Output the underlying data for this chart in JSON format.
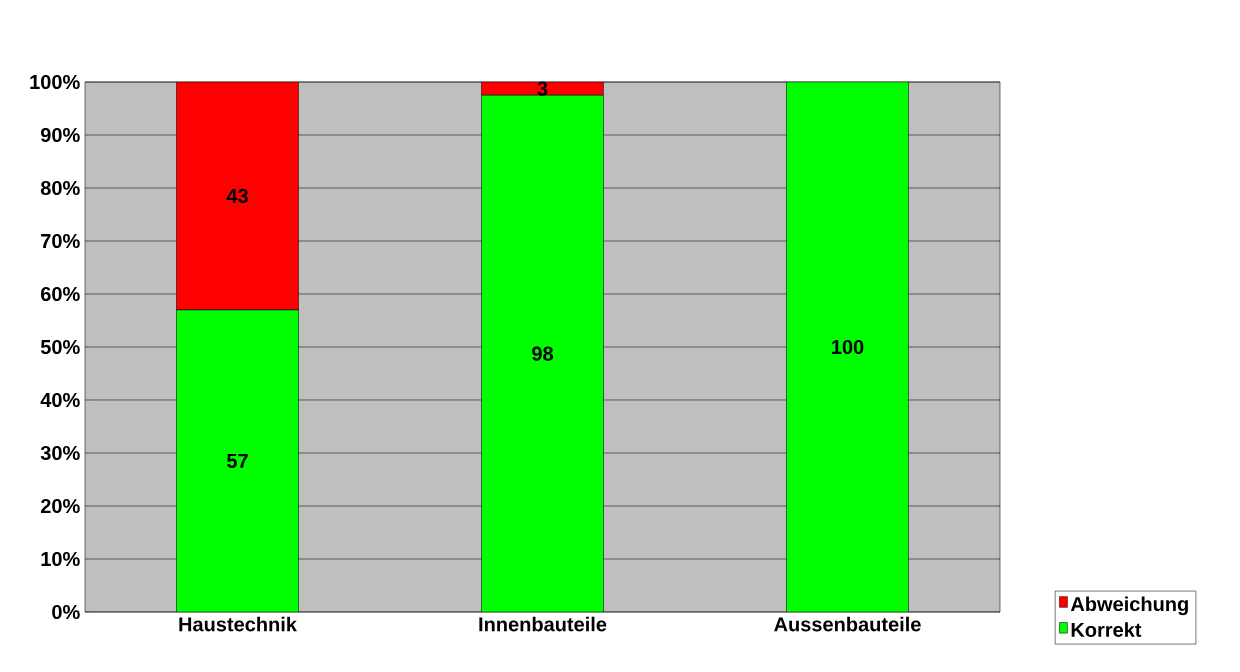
{
  "chart_data": {
    "type": "bar",
    "stacked": true,
    "categories": [
      "Haustechnik",
      "Innenbauteile",
      "Aussenbauteile"
    ],
    "series": [
      {
        "name": "Korrekt",
        "color": "#00ff00",
        "values": [
          57,
          97.5,
          100
        ],
        "value_labels": [
          "57",
          "98",
          "100"
        ]
      },
      {
        "name": "Abweichung",
        "color": "#ff0000",
        "values": [
          43,
          2.5,
          0
        ],
        "value_labels": [
          "43",
          "3",
          null
        ]
      }
    ],
    "ylim": [
      0,
      100
    ],
    "yticks": [
      {
        "value": 0,
        "label": "0%"
      },
      {
        "value": 10,
        "label": "10%"
      },
      {
        "value": 20,
        "label": "20%"
      },
      {
        "value": 30,
        "label": "30%"
      },
      {
        "value": 40,
        "label": "40%"
      },
      {
        "value": 50,
        "label": "50%"
      },
      {
        "value": 60,
        "label": "60%"
      },
      {
        "value": 70,
        "label": "70%"
      },
      {
        "value": 80,
        "label": "80%"
      },
      {
        "value": 90,
        "label": "90%"
      },
      {
        "value": 100,
        "label": "100%"
      }
    ],
    "grid": "y",
    "legend": "bottom right"
  }
}
